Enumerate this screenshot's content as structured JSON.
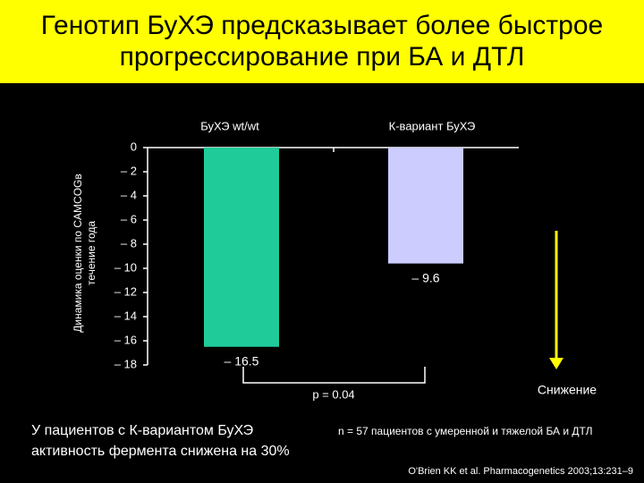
{
  "chart_data": {
    "type": "bar",
    "title": "Генотип БуХЭ предсказывает более быстрое прогрессирование при БА и ДТЛ",
    "ylabel": [
      "Динамика оценки по CAMCOGв",
      "течение года"
    ],
    "categories": [
      "БуХЭ wt/wt",
      "К-вариант БуХЭ"
    ],
    "values": [
      -16.5,
      -9.6
    ],
    "value_labels": [
      "– 16.5",
      "– 9.6"
    ],
    "colors": [
      "#1fcc99",
      "#ccccff"
    ],
    "ylim": [
      -18,
      0
    ],
    "yticks": [
      0,
      {
        "value": -2,
        "label": "– 2"
      },
      {
        "value": -4,
        "label": "– 4"
      },
      {
        "value": -6,
        "label": "– 6"
      },
      {
        "value": -8,
        "label": "– 8"
      },
      {
        "value": -10,
        "label": "– 10"
      },
      {
        "value": -12,
        "label": "– 12"
      },
      {
        "value": -14,
        "label": "– 14"
      },
      {
        "value": -16,
        "label": "– 16"
      },
      {
        "value": -18,
        "label": "– 18"
      }
    ],
    "annotations": {
      "p_value": "p = 0.04",
      "arrow_label": "Снижение",
      "conclusion": [
        "У пациентов с К-вариантом БуХЭ",
        "активность фермента снижена на 30%"
      ],
      "sample": "n = 57 пациентов с умеренной и тяжелой БА и ДТЛ",
      "citation": "O'Brien KK et al. Pharmacogenetics 2003;13:231–9"
    }
  }
}
